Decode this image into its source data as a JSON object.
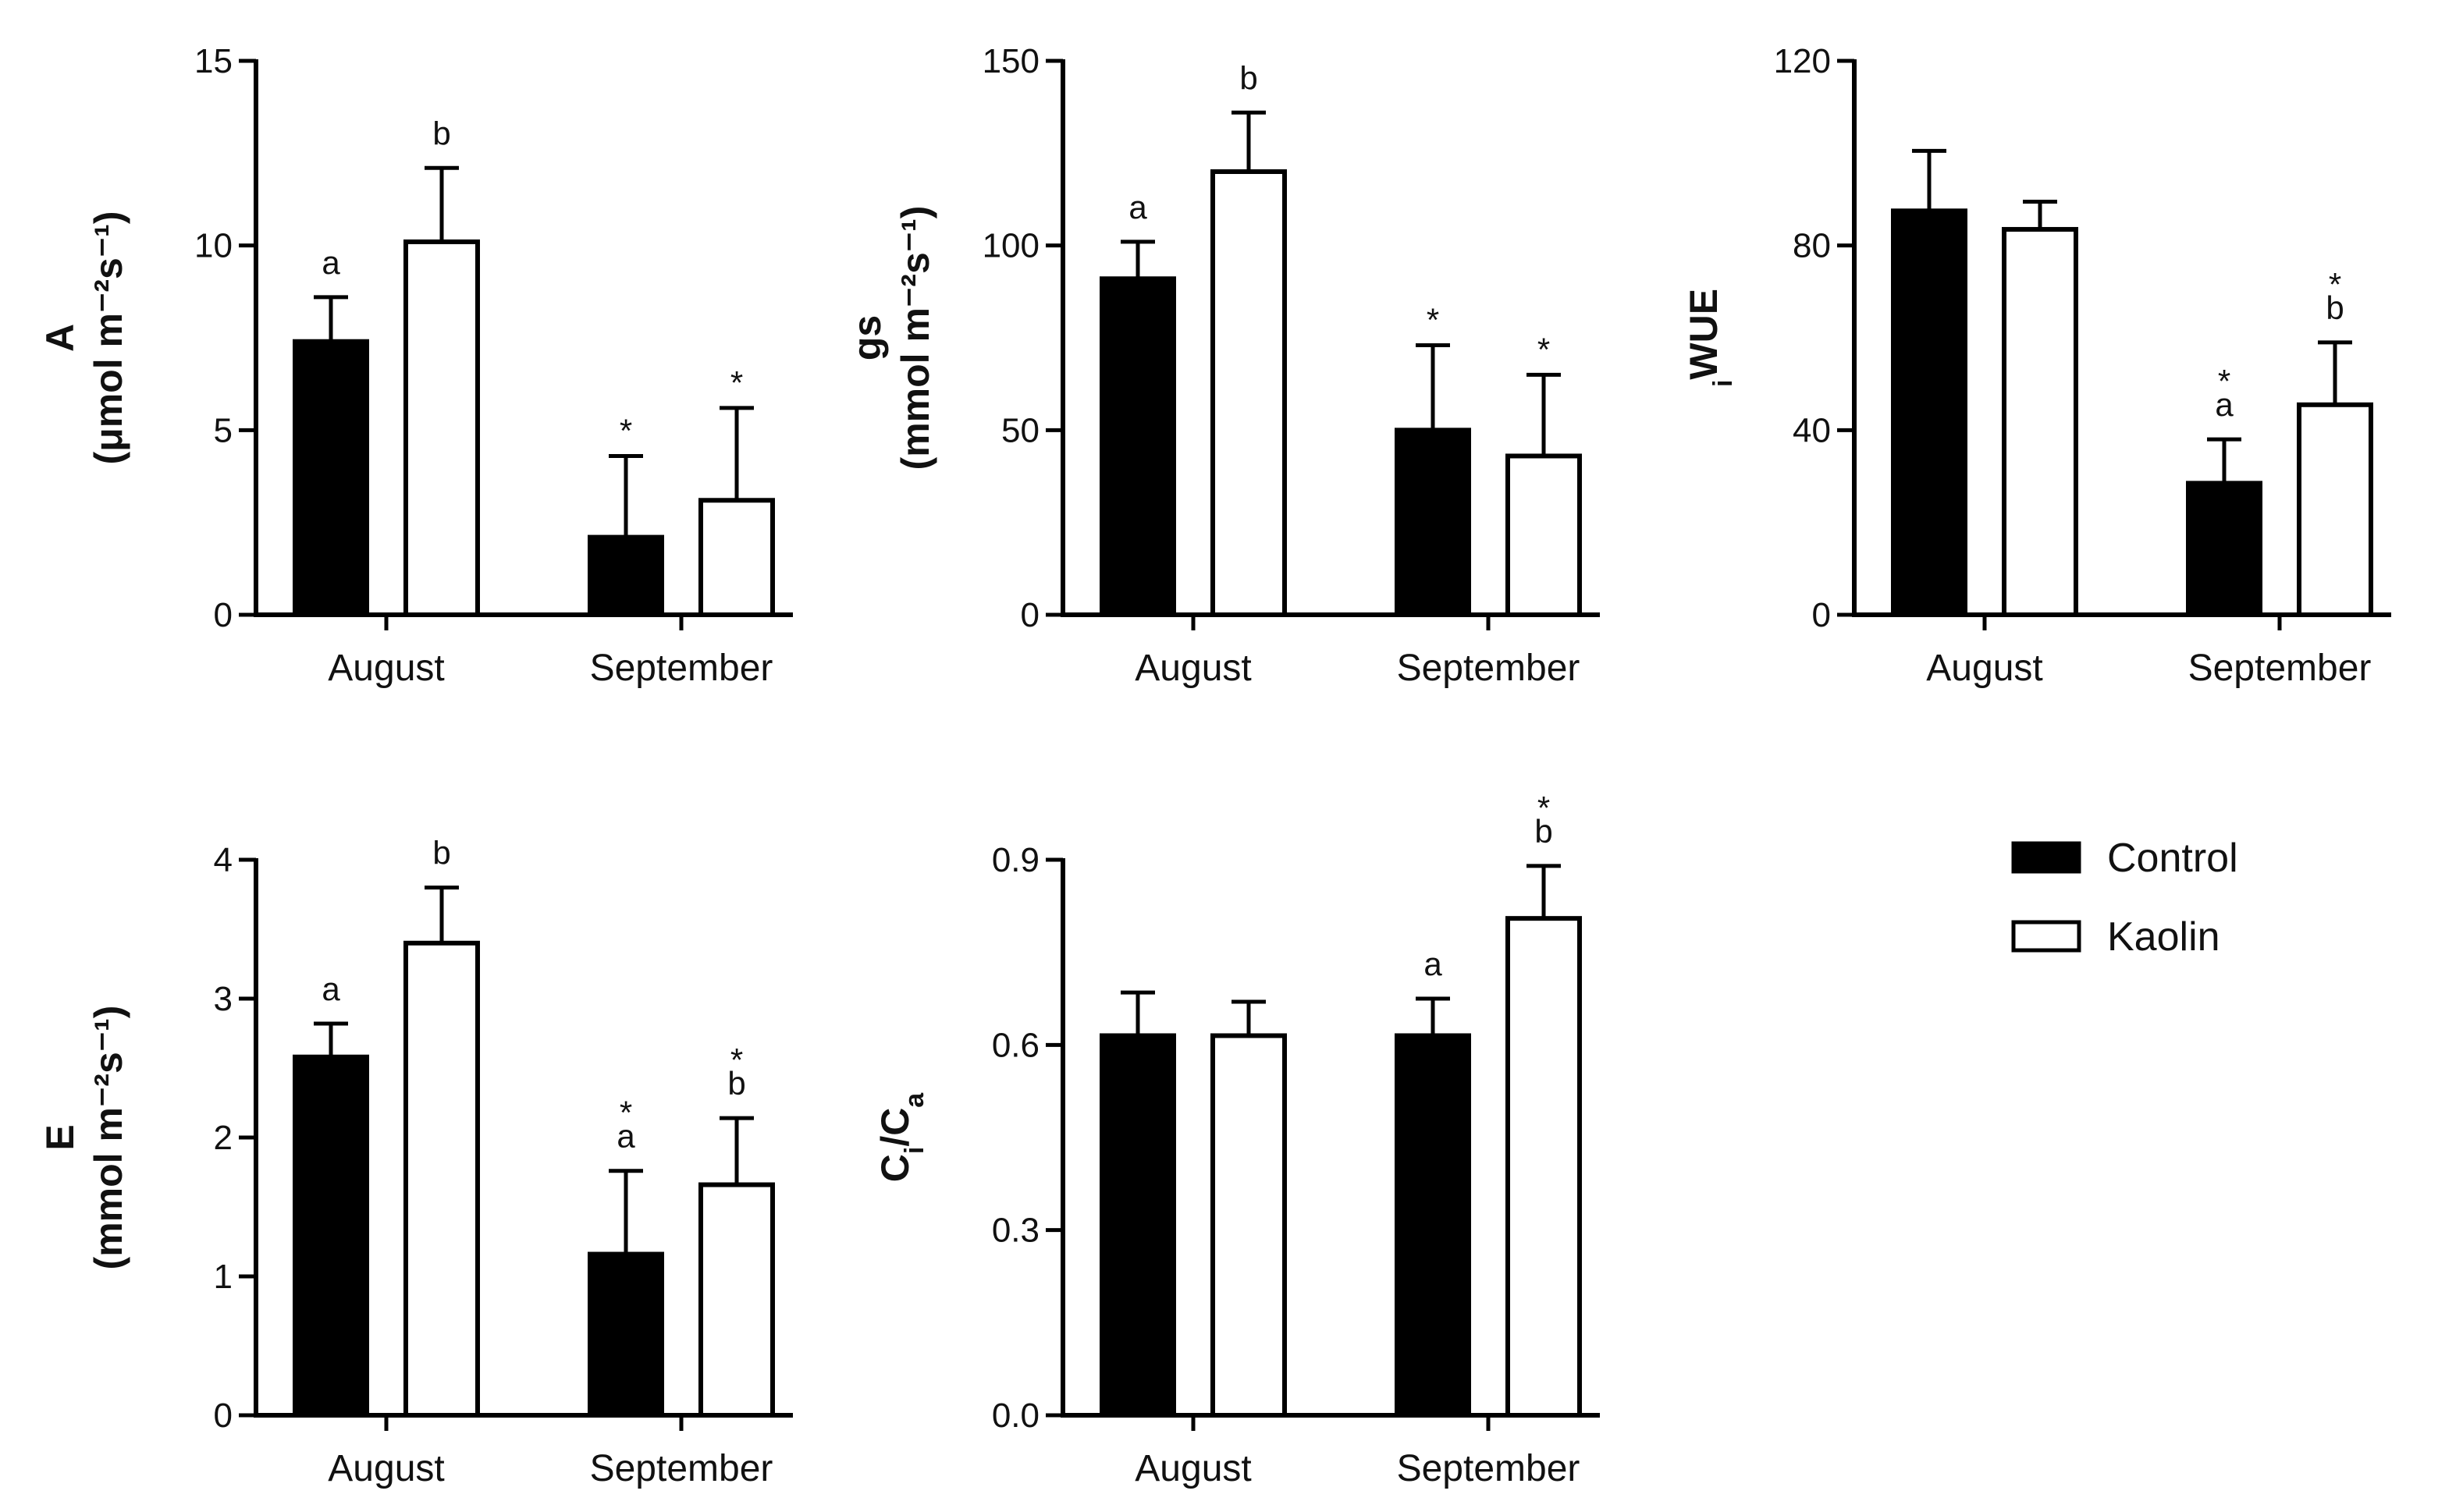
{
  "colors": {
    "control": "#000000",
    "kaolin": "#ffffff",
    "stroke": "#000000"
  },
  "legend": [
    {
      "key": "control",
      "label": "Control"
    },
    {
      "key": "kaolin",
      "label": "Kaolin"
    }
  ],
  "chart_data": [
    {
      "id": "A",
      "type": "bar",
      "ylabel": {
        "main": "A",
        "sub": "(μmol m⁻²s⁻¹)"
      },
      "ylim": [
        0,
        15
      ],
      "yticks": [
        "0",
        "5",
        "10",
        "15"
      ],
      "categories": [
        "August",
        "September"
      ],
      "series": [
        {
          "name": "Control",
          "values": [
            7.4,
            2.1
          ],
          "errors": [
            1.2,
            2.2
          ],
          "annotations": [
            [
              "a"
            ],
            [
              "*"
            ]
          ]
        },
        {
          "name": "Kaolin",
          "values": [
            10.1,
            3.1
          ],
          "errors": [
            2.0,
            2.5
          ],
          "annotations": [
            [
              "b"
            ],
            [
              "*"
            ]
          ]
        }
      ]
    },
    {
      "id": "gs",
      "type": "bar",
      "ylabel": {
        "main": "gs",
        "sub": "(mmol m⁻²s⁻¹)"
      },
      "ylim": [
        0,
        150
      ],
      "yticks": [
        "0",
        "50",
        "100",
        "150"
      ],
      "categories": [
        "August",
        "September"
      ],
      "series": [
        {
          "name": "Control",
          "values": [
            91,
            50
          ],
          "errors": [
            10,
            23
          ],
          "annotations": [
            [
              "a"
            ],
            [
              "*"
            ]
          ]
        },
        {
          "name": "Kaolin",
          "values": [
            120,
            43
          ],
          "errors": [
            16,
            22
          ],
          "annotations": [
            [
              "b"
            ],
            [
              "*"
            ]
          ]
        }
      ]
    },
    {
      "id": "iWUE",
      "type": "bar",
      "ylabel": {
        "main": "WUE",
        "prefix_sub": "i"
      },
      "ylim": [
        0,
        120
      ],
      "yticks": [
        "0",
        "40",
        "80",
        "120"
      ],
      "categories": [
        "August",
        "September"
      ],
      "series": [
        {
          "name": "Control",
          "values": [
            87.5,
            28.5
          ],
          "errors": [
            13,
            9.5
          ],
          "annotations": [
            [],
            [
              "a",
              "*"
            ]
          ]
        },
        {
          "name": "Kaolin",
          "values": [
            83.5,
            45.5
          ],
          "errors": [
            6,
            13.5
          ],
          "annotations": [
            [],
            [
              "b",
              "*"
            ]
          ]
        }
      ]
    },
    {
      "id": "E",
      "type": "bar",
      "ylabel": {
        "main": "E",
        "sub": "(mmol m⁻²s⁻¹)"
      },
      "ylim": [
        0,
        4
      ],
      "yticks": [
        "0",
        "1",
        "2",
        "3",
        "4"
      ],
      "categories": [
        "August",
        "September"
      ],
      "series": [
        {
          "name": "Control",
          "values": [
            2.58,
            1.16
          ],
          "errors": [
            0.24,
            0.6
          ],
          "annotations": [
            [
              "a"
            ],
            [
              "a",
              "*"
            ]
          ]
        },
        {
          "name": "Kaolin",
          "values": [
            3.4,
            1.66
          ],
          "errors": [
            0.4,
            0.48
          ],
          "annotations": [
            [
              "b"
            ],
            [
              "b",
              "*"
            ]
          ]
        }
      ]
    },
    {
      "id": "CiCa",
      "type": "bar",
      "ylabel": {
        "main": "Ci/Ca",
        "sub": ""
      },
      "ylim": [
        0,
        0.9
      ],
      "yticks": [
        "0.0",
        "0.3",
        "0.6",
        "0.9"
      ],
      "categories": [
        "August",
        "September"
      ],
      "series": [
        {
          "name": "Control",
          "values": [
            0.615,
            0.615
          ],
          "errors": [
            0.07,
            0.06
          ],
          "annotations": [
            [],
            [
              "a"
            ]
          ]
        },
        {
          "name": "Kaolin",
          "values": [
            0.615,
            0.805
          ],
          "errors": [
            0.055,
            0.085
          ],
          "annotations": [
            [],
            [
              "b",
              "*"
            ]
          ]
        }
      ]
    }
  ]
}
